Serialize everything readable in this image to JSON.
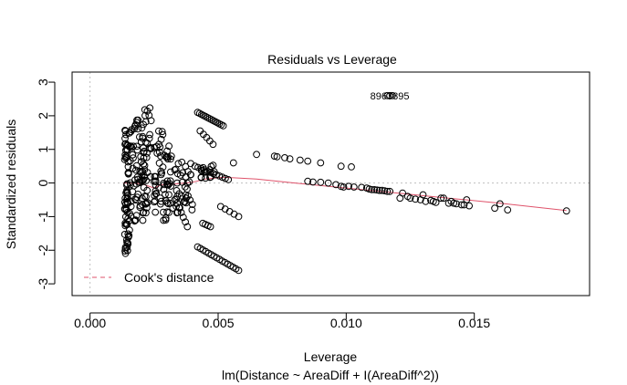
{
  "chart_data": {
    "type": "scatter",
    "title": "Residuals vs Leverage",
    "xlabel": "Leverage",
    "subtitle": "lm(Distance ~ AreaDiff + I(AreaDiff^2))",
    "ylabel": "Standardized residuals",
    "xlim": [
      -0.0007,
      0.0195
    ],
    "ylim": [
      -3.35,
      3.3
    ],
    "x_ticks": [
      0.0,
      0.005,
      0.01,
      0.015
    ],
    "x_tick_labels": [
      "0.000",
      "0.005",
      "0.010",
      "0.015"
    ],
    "y_ticks": [
      -3,
      -2,
      -1,
      0,
      1,
      2,
      3
    ],
    "y_tick_labels": [
      "-3",
      "-2",
      "-1",
      "0",
      "1",
      "2",
      "3"
    ],
    "reference_lines": {
      "x": 0,
      "y": 0,
      "style": "dotted",
      "color": "#bebebe"
    },
    "legend": {
      "label": "Cook's distance",
      "position": "bottom-left",
      "style": "dashed",
      "color": "#df536b"
    },
    "annotation_label": "8963895",
    "annotation_point": [
      0.0117,
      2.6
    ],
    "smooth_color": "#df536b",
    "smooth_line": [
      [
        0.0013,
        0.0
      ],
      [
        0.002,
        -0.02
      ],
      [
        0.0025,
        -0.15
      ],
      [
        0.0028,
        -0.05
      ],
      [
        0.0033,
        -0.03
      ],
      [
        0.004,
        0.02
      ],
      [
        0.0045,
        0.12
      ],
      [
        0.0052,
        0.17
      ],
      [
        0.0065,
        0.12
      ],
      [
        0.008,
        0.0
      ],
      [
        0.01,
        -0.15
      ],
      [
        0.012,
        -0.3
      ],
      [
        0.014,
        -0.45
      ],
      [
        0.016,
        -0.6
      ],
      [
        0.0186,
        -0.82
      ]
    ],
    "clusters": [
      {
        "x": 0.00145,
        "x_spread": 0.0001,
        "y_min": -2.1,
        "y_max": 1.6,
        "n": 70
      },
      {
        "x": 0.00185,
        "x_spread": 0.0003,
        "y_min": -1.2,
        "y_max": 1.9,
        "n": 60
      },
      {
        "x": 0.0022,
        "x_spread": 0.0002,
        "y_min": -0.9,
        "y_max": 2.25,
        "n": 40
      },
      {
        "x": 0.0028,
        "x_spread": 0.0003,
        "y_min": -1.3,
        "y_max": 1.7,
        "n": 50
      },
      {
        "x": 0.0033,
        "x_spread": 0.0003,
        "y_min": -0.9,
        "y_max": 0.8,
        "n": 30
      },
      {
        "x": 0.0038,
        "x_spread": 0.0002,
        "y_min": -0.8,
        "y_max": 0.6,
        "n": 20
      },
      {
        "x": 0.0046,
        "x_spread": 0.0003,
        "y_min": 0.1,
        "y_max": 0.55,
        "n": 15
      }
    ],
    "bands": [
      {
        "x1": 0.0042,
        "y1": 2.1,
        "x2": 0.0052,
        "y2": 1.7,
        "n": 14
      },
      {
        "x1": 0.0043,
        "y1": 1.55,
        "x2": 0.0048,
        "y2": 1.15,
        "n": 5
      },
      {
        "x1": 0.0042,
        "y1": -1.9,
        "x2": 0.0058,
        "y2": -2.6,
        "n": 16
      },
      {
        "x1": 0.0044,
        "y1": -1.2,
        "x2": 0.0047,
        "y2": -1.3,
        "n": 4
      },
      {
        "x1": 0.0051,
        "y1": -0.7,
        "x2": 0.0058,
        "y2": -1.0,
        "n": 5
      },
      {
        "x1": 0.0041,
        "y1": 0.5,
        "x2": 0.0054,
        "y2": 0.1,
        "n": 12
      },
      {
        "x1": 0.0034,
        "y1": -0.6,
        "x2": 0.0038,
        "y2": -1.3,
        "n": 6
      }
    ],
    "points": [
      [
        0.0056,
        0.6
      ],
      [
        0.0065,
        0.85
      ],
      [
        0.0072,
        0.8
      ],
      [
        0.0073,
        0.78
      ],
      [
        0.0076,
        0.75
      ],
      [
        0.0078,
        0.72
      ],
      [
        0.0082,
        0.68
      ],
      [
        0.0085,
        0.65
      ],
      [
        0.009,
        0.6
      ],
      [
        0.0098,
        0.5
      ],
      [
        0.0102,
        0.48
      ],
      [
        0.0085,
        0.05
      ],
      [
        0.0087,
        0.03
      ],
      [
        0.009,
        0.02
      ],
      [
        0.0093,
        0.0
      ],
      [
        0.0096,
        -0.05
      ],
      [
        0.0098,
        -0.1
      ],
      [
        0.0099,
        -0.12
      ],
      [
        0.0101,
        -0.1
      ],
      [
        0.0103,
        -0.12
      ],
      [
        0.0106,
        -0.13
      ],
      [
        0.0108,
        -0.15
      ],
      [
        0.0109,
        -0.18
      ],
      [
        0.011,
        -0.2
      ],
      [
        0.0111,
        -0.2
      ],
      [
        0.0112,
        -0.21
      ],
      [
        0.0113,
        -0.22
      ],
      [
        0.0114,
        -0.22
      ],
      [
        0.0115,
        -0.23
      ],
      [
        0.0116,
        -0.25
      ],
      [
        0.0117,
        -0.25
      ],
      [
        0.0122,
        -0.3
      ],
      [
        0.0124,
        -0.4
      ],
      [
        0.0121,
        -0.45
      ],
      [
        0.0125,
        -0.45
      ],
      [
        0.0127,
        -0.48
      ],
      [
        0.0129,
        -0.5
      ],
      [
        0.013,
        -0.35
      ],
      [
        0.0131,
        -0.55
      ],
      [
        0.0133,
        -0.52
      ],
      [
        0.0134,
        -0.55
      ],
      [
        0.0135,
        -0.58
      ],
      [
        0.0137,
        -0.45
      ],
      [
        0.0138,
        -0.45
      ],
      [
        0.014,
        -0.6
      ],
      [
        0.0141,
        -0.55
      ],
      [
        0.0142,
        -0.6
      ],
      [
        0.0143,
        -0.62
      ],
      [
        0.0145,
        -0.65
      ],
      [
        0.0146,
        -0.65
      ],
      [
        0.0147,
        -0.5
      ],
      [
        0.0148,
        -0.68
      ],
      [
        0.0158,
        -0.75
      ],
      [
        0.016,
        -0.62
      ],
      [
        0.0163,
        -0.8
      ],
      [
        0.0186,
        -0.83
      ],
      [
        0.0029,
        -0.05
      ],
      [
        0.003,
        -0.03
      ],
      [
        0.0031,
        -0.02
      ],
      [
        0.0034,
        0.0
      ],
      [
        0.0038,
        0.0
      ],
      [
        0.0036,
        0.02
      ]
    ]
  }
}
